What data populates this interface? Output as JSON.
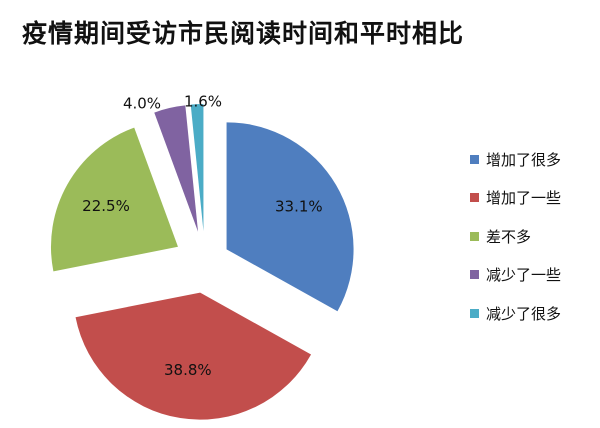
{
  "chart_data": {
    "type": "pie",
    "title": "疫情期间受访市民阅读时间和平时相比",
    "legend_position": "right",
    "categories": [
      "增加了很多",
      "增加了一些",
      "差不多",
      "减少了一些",
      "减少了很多"
    ],
    "values": [
      33.1,
      38.8,
      22.5,
      4.0,
      1.6
    ],
    "labels": [
      "33.1%",
      "38.8%",
      "22.5%",
      "4.0%",
      "1.6%"
    ],
    "colors": [
      "#4F7EBF",
      "#C24E4C",
      "#9BBB59",
      "#8063A1",
      "#4BACC6"
    ],
    "exploded": true
  }
}
